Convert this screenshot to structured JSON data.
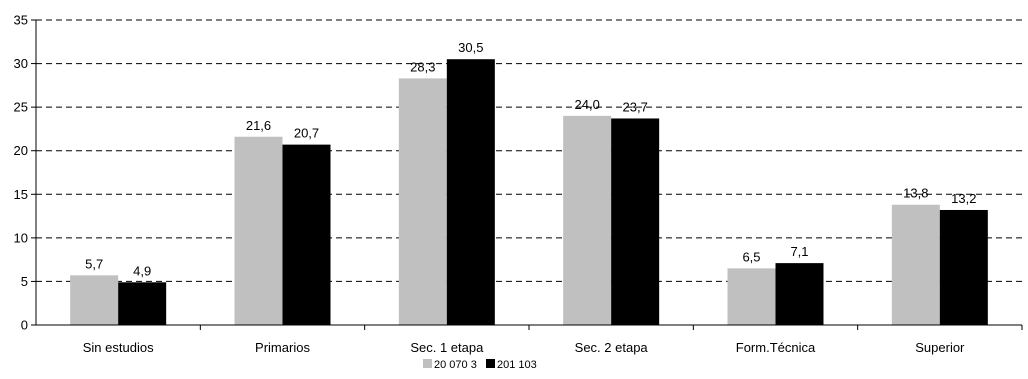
{
  "chart_data": {
    "type": "bar",
    "categories": [
      "Sin estudios",
      "Primarios",
      "Sec. 1 etapa",
      "Sec. 2 etapa",
      "Form.Técnica",
      "Superior"
    ],
    "series": [
      {
        "name": "20 070 3",
        "color": "#c0c0c0",
        "values": [
          5.7,
          21.6,
          28.3,
          24.0,
          6.5,
          13.8
        ],
        "labels": [
          "5,7",
          "21,6",
          "28,3",
          "24,0",
          "6,5",
          "13,8"
        ]
      },
      {
        "name": "201 103",
        "color": "#000000",
        "values": [
          4.9,
          20.7,
          30.5,
          23.7,
          7.1,
          13.2
        ],
        "labels": [
          "4,9",
          "20,7",
          "30,5",
          "23,7",
          "7,1",
          "13,2"
        ]
      }
    ],
    "y_ticks": [
      0,
      5,
      10,
      15,
      20,
      25,
      30,
      35
    ],
    "ylim": [
      0,
      35
    ],
    "grid": "horizontal dashed",
    "legend_position": "bottom-center"
  }
}
